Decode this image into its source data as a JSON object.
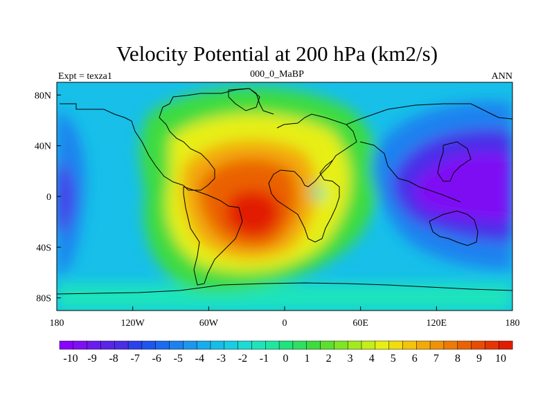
{
  "title": "Velocity Potential at 200 hPa (km2/s)",
  "left_label": "Expt = texza1",
  "center_label": "000_0_MaBP",
  "right_label": "ANN",
  "lat_ticks": [
    {
      "label": "80N",
      "value": 80
    },
    {
      "label": "40N",
      "value": 40
    },
    {
      "label": "0",
      "value": 0
    },
    {
      "label": "40S",
      "value": -40
    },
    {
      "label": "80S",
      "value": -80
    }
  ],
  "lon_ticks": [
    {
      "label": "180",
      "value": -180
    },
    {
      "label": "120W",
      "value": -120
    },
    {
      "label": "60W",
      "value": -60
    },
    {
      "label": "0",
      "value": 0
    },
    {
      "label": "60E",
      "value": 60
    },
    {
      "label": "120E",
      "value": 120
    },
    {
      "label": "180",
      "value": 180
    }
  ],
  "colorbar": {
    "labels": [
      "-10",
      "-9",
      "-8",
      "-7",
      "-6",
      "-5",
      "-4",
      "-3",
      "-2",
      "-1",
      "0",
      "1",
      "2",
      "3",
      "4",
      "5",
      "6",
      "7",
      "8",
      "9",
      "10"
    ],
    "colors": [
      "#8a00ff",
      "#7f10f4",
      "#6a1cf0",
      "#5a24ea",
      "#4a2de8",
      "#2c40ec",
      "#1e55ef",
      "#1a6bf0",
      "#1c82ef",
      "#1d96ef",
      "#17acec",
      "#16bde9",
      "#17cde3",
      "#1bdcd3",
      "#1ee4bc",
      "#1fe79f",
      "#1fe47d",
      "#2ee060",
      "#3edb3f",
      "#5ce02e",
      "#7fe526",
      "#a2ea1e",
      "#c4ee17",
      "#e7ef12",
      "#f2dc0c",
      "#f5c30a",
      "#f3a908",
      "#f09206",
      "#ee7a05",
      "#ea6204",
      "#e84b03",
      "#e63403",
      "#e21b02"
    ]
  },
  "map_data": {
    "field": "velocity potential at 200 hPa",
    "units": "km2/s",
    "lon_range": [
      -180,
      180
    ],
    "lat_range": [
      -90,
      90
    ],
    "centers": [
      {
        "name": "max-south-atlantic",
        "lon": -15,
        "lat": -20,
        "value": 10
      },
      {
        "name": "min-west-pacific",
        "lon": 150,
        "lat": 5,
        "value": -10
      },
      {
        "name": "min-east-pacific",
        "lon": -175,
        "lat": -5,
        "value": -8
      }
    ],
    "bands": [
      {
        "name": "red-core",
        "value": 10,
        "color": "#e21b02"
      },
      {
        "name": "orange",
        "value": 8,
        "color": "#ee7a05"
      },
      {
        "name": "yellow",
        "value": 5,
        "color": "#e7ef12"
      },
      {
        "name": "green",
        "value": 3,
        "color": "#3edb3f"
      },
      {
        "name": "cyan",
        "value": 0,
        "color": "#17cde3"
      },
      {
        "name": "blue",
        "value": -5,
        "color": "#1c82ef"
      },
      {
        "name": "purple",
        "value": -9,
        "color": "#7f10f4"
      }
    ]
  }
}
